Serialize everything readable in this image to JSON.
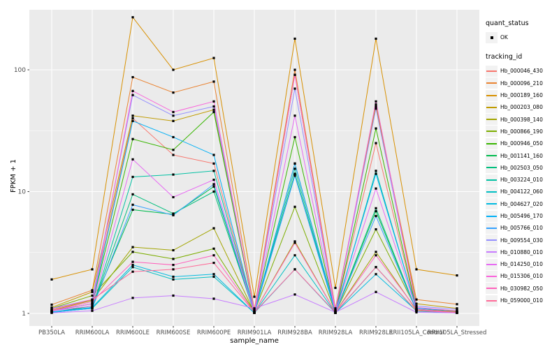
{
  "y_axis": {
    "label": "FPKM + 1",
    "tick_labels": [
      "1",
      "10",
      "100"
    ],
    "tick_values": [
      1,
      10,
      100
    ],
    "scale": "log10"
  },
  "x_axis": {
    "label": "sample_name"
  },
  "legend": {
    "quant_status_title": "quant_status",
    "quant_status_items": [
      {
        "label": "OK",
        "marker": "black-point"
      }
    ],
    "tracking_id_title": "tracking_id"
  },
  "colors": {
    "panel_background": "#EBEBEB",
    "grid": "#FFFFFF",
    "point": "#000000",
    "tick_text": "#4D4D4D",
    "legend_key_background": "#F2F2F2"
  },
  "chart_data": {
    "type": "line",
    "title": "",
    "xlabel": "sample_name",
    "ylabel": "FPKM + 1",
    "y_scale": "log10",
    "ylim": [
      1,
      300
    ],
    "grid": "major-white-on-grey, minor at 10^0.5 and 10^1.5",
    "legend_position": "right",
    "point_marker": "small black square at every observation",
    "categories": [
      "PB350LA",
      "RRIM600LA",
      "RRIM600LE",
      "RRIM600SE",
      "RRIM600PE",
      "RRIM901LA",
      "RRIM928BA",
      "RRIM928LA",
      "RRIM928LE",
      "RRII105LA_Control",
      "RRII105LA_Stressed"
    ],
    "series": [
      {
        "name": "Hb_000046_430",
        "color": "#F8766D",
        "values": [
          1.05,
          1.3,
          40,
          20,
          17,
          1.02,
          17,
          1.03,
          25,
          1.08,
          1.03
        ]
      },
      {
        "name": "Hb_000096_210",
        "color": "#EA8331",
        "values": [
          1.18,
          1.55,
          87,
          65,
          80,
          1.08,
          100,
          1.1,
          50,
          1.3,
          1.19
        ]
      },
      {
        "name": "Hb_000189_160",
        "color": "#D89000",
        "values": [
          1.9,
          2.3,
          270,
          100,
          125,
          1.37,
          180,
          1.62,
          180,
          2.3,
          2.05
        ]
      },
      {
        "name": "Hb_000203_080",
        "color": "#C09B00",
        "values": [
          1.12,
          1.5,
          42,
          38,
          47,
          1.05,
          91,
          1.05,
          52,
          1.2,
          1.1
        ]
      },
      {
        "name": "Hb_000398_140",
        "color": "#A3A500",
        "values": [
          1.06,
          1.28,
          3.5,
          3.3,
          5.0,
          1.02,
          3.9,
          1.02,
          3.2,
          1.06,
          1.02
        ]
      },
      {
        "name": "Hb_000866_190",
        "color": "#7CAE00",
        "values": [
          1.1,
          1.4,
          3.2,
          2.8,
          3.4,
          1.03,
          7.5,
          1.02,
          4.9,
          1.08,
          1.04
        ]
      },
      {
        "name": "Hb_000946_050",
        "color": "#39B600",
        "values": [
          1.05,
          1.2,
          27,
          22,
          45,
          1.02,
          28,
          1.02,
          33,
          1.08,
          1.02
        ]
      },
      {
        "name": "Hb_001141_160",
        "color": "#00BB4E",
        "values": [
          1.02,
          1.15,
          7.1,
          6.5,
          11,
          1.01,
          14,
          1.01,
          6.9,
          1.05,
          1.01
        ]
      },
      {
        "name": "Hb_002503_050",
        "color": "#00BF7D",
        "values": [
          1.02,
          1.12,
          9.5,
          6.6,
          10,
          1.01,
          13.8,
          1.01,
          7.3,
          1.05,
          1.01
        ]
      },
      {
        "name": "Hb_003224_010",
        "color": "#00C1A3",
        "values": [
          1.02,
          1.1,
          13.2,
          13.8,
          14.8,
          1.01,
          15.4,
          1.01,
          14.8,
          1.08,
          1.02
        ]
      },
      {
        "name": "Hb_004122_060",
        "color": "#00BFC4",
        "values": [
          1.02,
          1.1,
          2.4,
          1.9,
          2.0,
          1.01,
          3.0,
          1.01,
          2.4,
          1.04,
          1.01
        ]
      },
      {
        "name": "Hb_004627_020",
        "color": "#00BAE0",
        "values": [
          1.03,
          1.12,
          2.5,
          2.0,
          2.1,
          1.01,
          2.3,
          1.01,
          2.1,
          1.05,
          1.02
        ]
      },
      {
        "name": "Hb_005496_170",
        "color": "#00B0F6",
        "values": [
          1.05,
          1.2,
          38,
          28,
          20,
          1.02,
          17,
          1.04,
          14,
          1.1,
          1.05
        ]
      },
      {
        "name": "Hb_005766_010",
        "color": "#35A2FF",
        "values": [
          1.02,
          1.1,
          7.8,
          6.4,
          11.5,
          1.01,
          13.5,
          1.01,
          6.3,
          1.05,
          1.01
        ]
      },
      {
        "name": "Hb_009554_030",
        "color": "#9590FF",
        "values": [
          1.1,
          1.3,
          62,
          42,
          50,
          1.05,
          70,
          1.06,
          48,
          1.15,
          1.08
        ]
      },
      {
        "name": "Hb_010880_010",
        "color": "#C77CFF",
        "values": [
          1.01,
          1.05,
          1.34,
          1.4,
          1.32,
          1.1,
          1.43,
          1.02,
          1.5,
          1.02,
          1.01
        ]
      },
      {
        "name": "Hb_014250_010",
        "color": "#E76BF3",
        "values": [
          1.05,
          1.15,
          18.4,
          9.0,
          12.5,
          1.02,
          42,
          1.02,
          10.6,
          1.08,
          1.02
        ]
      },
      {
        "name": "Hb_015306_010",
        "color": "#FA62DB",
        "values": [
          1.06,
          1.2,
          67,
          45,
          55,
          1.03,
          91,
          1.05,
          55,
          1.12,
          1.05
        ]
      },
      {
        "name": "Hb_030982_050",
        "color": "#FF62BC",
        "values": [
          1.05,
          1.25,
          2.65,
          2.5,
          3.0,
          1.02,
          3.8,
          1.02,
          3.0,
          1.08,
          1.02
        ]
      },
      {
        "name": "Hb_059000_010",
        "color": "#FF6A98",
        "values": [
          1.08,
          1.3,
          2.2,
          2.3,
          2.6,
          1.02,
          2.3,
          1.02,
          2.4,
          1.05,
          1.02
        ]
      }
    ]
  }
}
